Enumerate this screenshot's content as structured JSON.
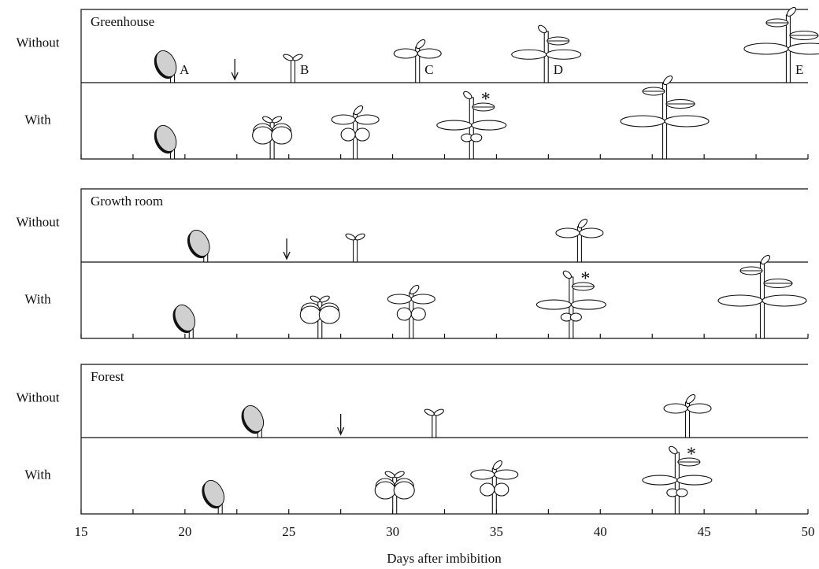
{
  "chart_data": {
    "type": "stage-timeline",
    "xlabel": "Days after imbibition",
    "xlim": [
      15,
      50
    ],
    "xticks": [
      15,
      20,
      25,
      30,
      35,
      40,
      45,
      50
    ],
    "minor_xticks": [
      17.5,
      22.5,
      27.5,
      32.5,
      37.5,
      42.5,
      47.5
    ],
    "stages": [
      "A",
      "B",
      "C",
      "D",
      "E"
    ],
    "panels": [
      {
        "title": "Greenhouse",
        "arrow": 22.4,
        "rows": [
          {
            "label": "Without",
            "values": [
              19.4,
              25.2,
              31.2,
              37.4,
              49.05
            ],
            "stage_labels": true
          },
          {
            "label": "With",
            "values": [
              19.4,
              24.2,
              28.2,
              33.8,
              43.1
            ],
            "gray_cotyledons": true,
            "annotation": {
              "text": "*",
              "stage": "D"
            }
          }
        ]
      },
      {
        "title": "Growth room",
        "arrow": 24.9,
        "rows": [
          {
            "label": "Without",
            "values": [
              21.0,
              28.2,
              39.0,
              null,
              null
            ]
          },
          {
            "label": "With",
            "values": [
              20.3,
              26.5,
              30.9,
              38.6,
              47.8
            ],
            "gray_cotyledons": true,
            "annotation": {
              "text": "*",
              "stage": "D"
            }
          }
        ]
      },
      {
        "title": "Forest",
        "arrow": 27.5,
        "rows": [
          {
            "label": "Without",
            "values": [
              23.6,
              32.0,
              44.2,
              null,
              null
            ]
          },
          {
            "label": "With",
            "values": [
              21.7,
              30.1,
              34.9,
              43.7,
              null
            ],
            "gray_cotyledons": true,
            "annotation": {
              "text": "*",
              "stage": "D"
            }
          }
        ]
      }
    ]
  }
}
